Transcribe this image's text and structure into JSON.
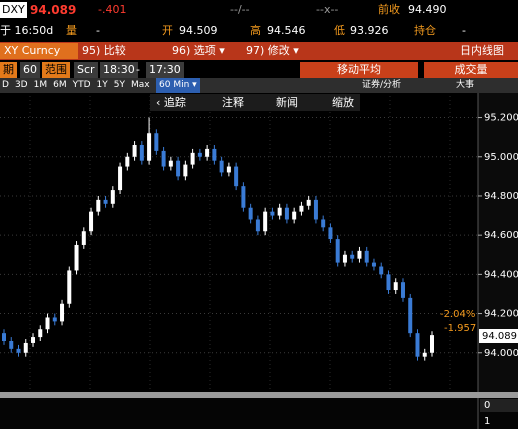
{
  "terminal": {
    "row1": {
      "ticker": "DXY",
      "last": "94.089",
      "change": "-.401",
      "bid_ask": "--/--",
      "size": "--x--",
      "prev_close_label": "前收",
      "prev_close": "94.490"
    },
    "row2": {
      "time": "于 16:50d",
      "volume_label": "量",
      "volume": "-",
      "open_label": "开",
      "open": "94.509",
      "high_label": "高",
      "high": "94.546",
      "low_label": "低",
      "low": "93.926",
      "oi_label": "持仓",
      "oi": "-"
    },
    "row3": {
      "security": "XY Curncy",
      "compare": "95) 比较",
      "options": "96) 选项 ▾",
      "edit": "97) 修改 ▾",
      "chart_type": "日内线图"
    },
    "row4": {
      "period_label": "期",
      "period": "60",
      "range_label": "范围",
      "scr": "Scr",
      "start": "18:30",
      "dash": "-",
      "end": "17:30",
      "moving_avg": "移动平均",
      "volume": "成交量"
    },
    "row5": {
      "ranges": [
        "D",
        "3D",
        "1M",
        "6M",
        "YTD",
        "1Y",
        "5Y",
        "Max"
      ],
      "interval": "60 Min ▾",
      "analysis": "证券/分析",
      "events": "大事"
    },
    "row6": {
      "track": "‹ 追踪",
      "annotate": "注释",
      "news": "新闻",
      "zoom": "缩放"
    },
    "annotations": {
      "pct": "-2.04%",
      "chg": "-1.957",
      "last_tag": "94.089"
    },
    "lower_axis": [
      "0",
      "1"
    ]
  },
  "chart_data": {
    "type": "candlestick",
    "up_color": "#ffffff",
    "down_color": "#3a7bd5",
    "grid": true,
    "ylim": [
      93.81,
      95.31
    ],
    "yticks": [
      {
        "value": 94.0,
        "label": "94.000"
      },
      {
        "value": 94.2,
        "label": "94.200"
      },
      {
        "value": 94.4,
        "label": "94.400"
      },
      {
        "value": 94.6,
        "label": "94.600"
      },
      {
        "value": 94.8,
        "label": "94.800"
      },
      {
        "value": 95.0,
        "label": "95.000"
      },
      {
        "value": 95.2,
        "label": "95.200"
      }
    ],
    "open": [
      94.1,
      94.06,
      94.02,
      94.0,
      94.05,
      94.08,
      94.12,
      94.18,
      94.16,
      94.25,
      94.42,
      94.55,
      94.62,
      94.72,
      94.78,
      94.76,
      94.83,
      94.95,
      95.0,
      95.06,
      94.98,
      95.12,
      95.03,
      94.95,
      94.98,
      94.9,
      94.96,
      95.02,
      95.0,
      95.04,
      94.98,
      94.92,
      94.95,
      94.85,
      94.74,
      94.68,
      94.62,
      94.72,
      94.7,
      94.74,
      94.68,
      94.72,
      94.75,
      94.78,
      94.68,
      94.64,
      94.58,
      94.46,
      94.5,
      94.48,
      94.52,
      94.46,
      94.44,
      94.4,
      94.32,
      94.36,
      94.28,
      94.1,
      93.98,
      94.0
    ],
    "high": [
      94.12,
      94.08,
      94.04,
      94.07,
      94.1,
      94.14,
      94.2,
      94.2,
      94.27,
      94.44,
      94.57,
      94.64,
      94.74,
      94.8,
      94.8,
      94.85,
      94.97,
      95.02,
      95.08,
      95.08,
      95.2,
      95.14,
      95.05,
      95.0,
      95.0,
      94.98,
      95.04,
      95.04,
      95.06,
      95.06,
      95.0,
      94.97,
      94.97,
      94.87,
      94.76,
      94.7,
      94.74,
      94.74,
      94.76,
      94.76,
      94.74,
      94.77,
      94.8,
      94.8,
      94.7,
      94.66,
      94.6,
      94.52,
      94.52,
      94.54,
      94.54,
      94.48,
      94.46,
      94.42,
      94.38,
      94.38,
      94.3,
      94.12,
      94.02,
      94.11
    ],
    "low": [
      94.04,
      94.0,
      93.98,
      93.98,
      94.03,
      94.06,
      94.1,
      94.14,
      94.14,
      94.23,
      94.4,
      94.53,
      94.6,
      94.7,
      94.74,
      94.74,
      94.81,
      94.93,
      94.98,
      94.96,
      94.96,
      95.01,
      94.93,
      94.93,
      94.88,
      94.88,
      94.94,
      94.98,
      94.98,
      94.96,
      94.9,
      94.9,
      94.83,
      94.72,
      94.66,
      94.6,
      94.6,
      94.68,
      94.68,
      94.66,
      94.66,
      94.7,
      94.73,
      94.66,
      94.62,
      94.56,
      94.44,
      94.44,
      94.46,
      94.46,
      94.44,
      94.42,
      94.38,
      94.3,
      94.3,
      94.26,
      94.08,
      93.96,
      93.96,
      93.98
    ],
    "close": [
      94.06,
      94.02,
      94.0,
      94.05,
      94.08,
      94.12,
      94.18,
      94.16,
      94.25,
      94.42,
      94.55,
      94.62,
      94.72,
      94.78,
      94.76,
      94.83,
      94.95,
      95.0,
      95.06,
      94.98,
      95.12,
      95.03,
      94.95,
      94.98,
      94.9,
      94.96,
      95.02,
      95.0,
      95.04,
      94.98,
      94.92,
      94.95,
      94.85,
      94.74,
      94.68,
      94.62,
      94.72,
      94.7,
      94.74,
      94.68,
      94.72,
      94.75,
      94.78,
      94.68,
      94.64,
      94.58,
      94.46,
      94.5,
      94.48,
      94.52,
      94.46,
      94.44,
      94.4,
      94.32,
      94.36,
      94.28,
      94.1,
      93.98,
      94.0,
      94.09
    ]
  }
}
